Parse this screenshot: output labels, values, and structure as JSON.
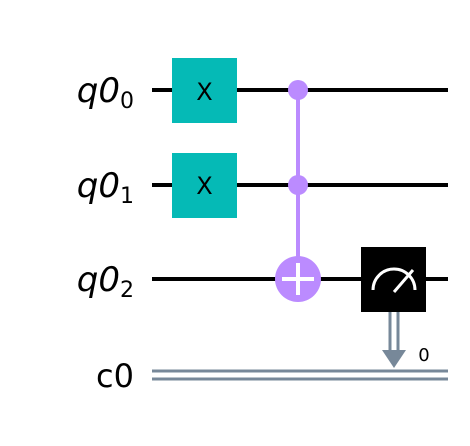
{
  "circuit": {
    "qubits": [
      {
        "register": "q0",
        "index": "0"
      },
      {
        "register": "q0",
        "index": "1"
      },
      {
        "register": "q0",
        "index": "2"
      }
    ],
    "classical": {
      "label": "c0",
      "bit_label": "0"
    },
    "gates": [
      {
        "type": "x",
        "label": "X",
        "qubit": 0
      },
      {
        "type": "x",
        "label": "X",
        "qubit": 1
      },
      {
        "type": "ccx",
        "controls": [
          0,
          1
        ],
        "target": 2
      },
      {
        "type": "measure",
        "qubit": 2,
        "clbit": 0
      }
    ],
    "colors": {
      "x_gate": "#05bab6",
      "ccx": "#bb8bff",
      "measure_box": "#000000",
      "classical_wire": "#778899",
      "quantum_wire": "#000000"
    }
  }
}
